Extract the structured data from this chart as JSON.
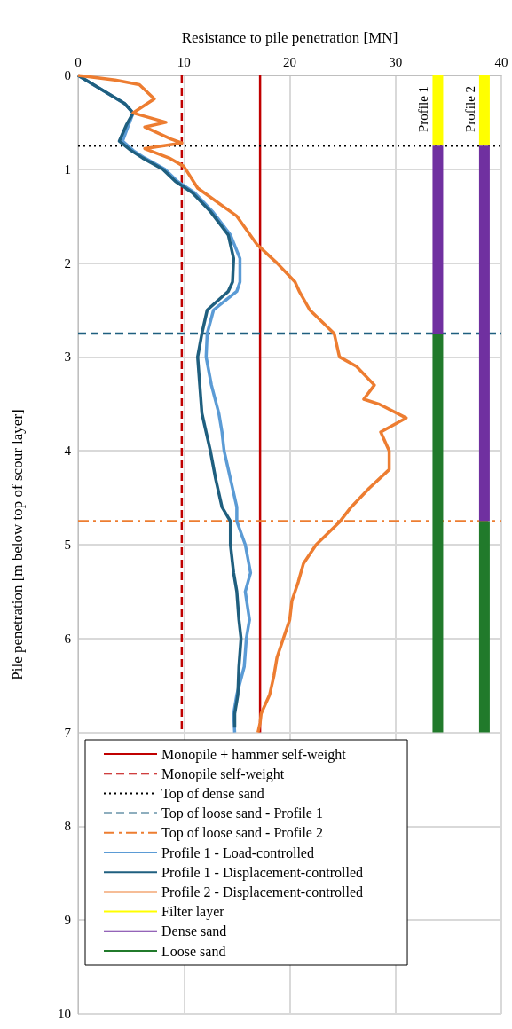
{
  "chart_data": {
    "type": "line",
    "xlabel": "Resistance to pile penetration [MN]",
    "ylabel": "Pile penetration [m below top of scour layer]",
    "xlim": [
      0,
      40
    ],
    "xticks": [
      0,
      10,
      20,
      30,
      40
    ],
    "ylim": [
      10,
      0
    ],
    "yticks": [
      0,
      1,
      2,
      3,
      4,
      5,
      6,
      7,
      8,
      9,
      10
    ],
    "grid": true,
    "legend": "bottom",
    "marker": "none",
    "ref_lines": [
      {
        "axis": "x",
        "value": 17.2,
        "label": "Monopile + hammer self-weight",
        "color": "#c00000",
        "line_style": "solid"
      },
      {
        "axis": "x",
        "value": 9.8,
        "label": "Monopile self-weight",
        "color": "#c00000",
        "line_style": "dashed"
      },
      {
        "axis": "y",
        "value": 0.75,
        "label": "Top of dense sand",
        "color": "#000000",
        "line_style": "dotted"
      },
      {
        "axis": "y",
        "value": 2.75,
        "label": "Top of loose sand - Profile 1",
        "color": "#1f5f7f",
        "line_style": "dashed"
      },
      {
        "axis": "y",
        "value": 4.75,
        "label": "Top of loose sand - Profile 2",
        "color": "#ed7d31",
        "line_style": "dashdot"
      }
    ],
    "series": [
      {
        "name": "Profile 1 - Load-controlled",
        "color": "#5b9bd5",
        "x": [
          0,
          4.4,
          5.2,
          4.8,
          4.2,
          5.2,
          6.3,
          8.2,
          9.4,
          11,
          12.7,
          14.4,
          15.3,
          15.3,
          15,
          12.8,
          12.2,
          12.1,
          12.6,
          13.3,
          13.6,
          13.8,
          14.4,
          15,
          15,
          15.8,
          16.3,
          15.8,
          16.2,
          15.9,
          15.7,
          15,
          14.7,
          14.8
        ],
        "values": [
          0,
          0.3,
          0.4,
          0.52,
          0.7,
          0.8,
          0.88,
          1,
          1.13,
          1.25,
          1.45,
          1.7,
          1.95,
          2.2,
          2.3,
          2.5,
          2.75,
          3,
          3.3,
          3.6,
          3.8,
          4,
          4.3,
          4.6,
          4.75,
          5,
          5.3,
          5.5,
          5.8,
          6,
          6.3,
          6.6,
          6.8,
          7
        ]
      },
      {
        "name": "Profile 1 - Displacement-controlled",
        "color": "#1f5f7f",
        "x": [
          0,
          4.4,
          5.2,
          4.6,
          3.9,
          5,
          6.1,
          8,
          9.2,
          10.8,
          12.5,
          14.2,
          14.7,
          14.6,
          14.2,
          12.2,
          11.7,
          11.3,
          11.5,
          11.7,
          12.1,
          12.5,
          13,
          13.6,
          14.4,
          14.4,
          14.7,
          15,
          15.2,
          15.4,
          15.2,
          15.1,
          14.8,
          14.8
        ],
        "values": [
          0,
          0.3,
          0.4,
          0.52,
          0.7,
          0.8,
          0.88,
          1,
          1.13,
          1.25,
          1.45,
          1.7,
          1.95,
          2.2,
          2.3,
          2.5,
          2.75,
          3,
          3.3,
          3.6,
          3.8,
          4,
          4.3,
          4.6,
          4.75,
          5,
          5.3,
          5.5,
          5.8,
          6,
          6.3,
          6.6,
          6.8,
          6.95
        ]
      },
      {
        "name": "Profile 2 - Displacement-controlled",
        "color": "#ed7d31",
        "x": [
          0,
          3.5,
          5.8,
          7.2,
          5.2,
          8.3,
          6.3,
          8.8,
          9.8,
          6.3,
          8.6,
          10,
          11.3,
          15,
          16.9,
          18.8,
          20.5,
          20.9,
          21.9,
          24.2,
          24.7,
          26.3,
          28,
          27,
          28.4,
          31,
          28.6,
          29.4,
          29.4,
          27.5,
          25.8,
          24.7,
          22.5,
          21.3,
          20.8,
          20.2,
          20,
          19.4,
          18.8,
          18.5,
          18.1,
          17.3,
          17.2,
          17
        ],
        "values": [
          0,
          0.05,
          0.1,
          0.25,
          0.4,
          0.5,
          0.55,
          0.68,
          0.72,
          0.78,
          0.88,
          0.97,
          1.2,
          1.5,
          1.8,
          2,
          2.2,
          2.3,
          2.5,
          2.75,
          3,
          3.1,
          3.3,
          3.45,
          3.5,
          3.65,
          3.8,
          4,
          4.2,
          4.4,
          4.6,
          4.76,
          5,
          5.2,
          5.4,
          5.6,
          5.8,
          6,
          6.2,
          6.4,
          6.6,
          6.8,
          6.9,
          7
        ]
      },
      {
        "name": "Filter layer",
        "color": "#ffff00",
        "x": [
          34,
          34,
          null,
          38.4,
          38.4
        ],
        "values": [
          0,
          0.75,
          null,
          0,
          0.75
        ]
      },
      {
        "name": "Dense sand",
        "color": "#7030a0",
        "x": [
          34,
          34,
          null,
          38.4,
          38.4
        ],
        "values": [
          0.75,
          2.75,
          null,
          0.75,
          4.75
        ]
      },
      {
        "name": "Loose sand",
        "color": "#217a2b",
        "x": [
          34,
          34,
          null,
          38.4,
          38.4
        ],
        "values": [
          2.75,
          7,
          null,
          4.75,
          7
        ]
      }
    ],
    "annotations": [
      "Profile 1",
      "Profile 2"
    ]
  }
}
